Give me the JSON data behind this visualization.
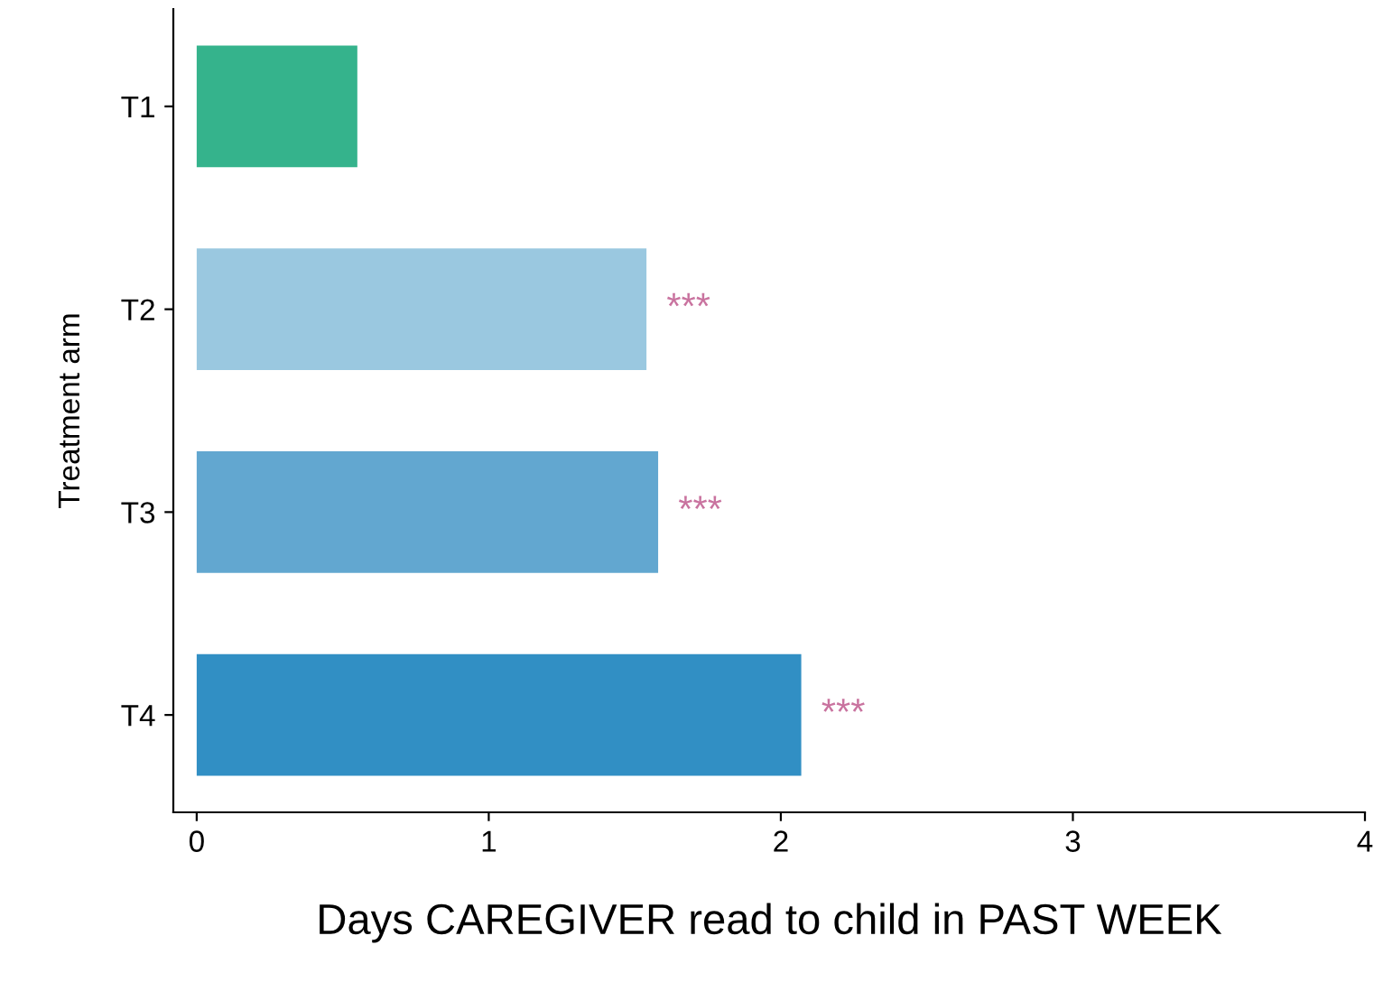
{
  "chart_data": {
    "type": "bar",
    "orientation": "horizontal",
    "xlabel": "Days CAREGIVER read to child in PAST WEEK",
    "ylabel": "Treatment arm",
    "categories": [
      "T1",
      "T2",
      "T3",
      "T4"
    ],
    "values": [
      0.55,
      1.54,
      1.58,
      2.07
    ],
    "colors": [
      "#35b38c",
      "#9ac8e0",
      "#62a7d0",
      "#318fc4"
    ],
    "xlim": [
      -0.08,
      4
    ],
    "xticks": [
      0,
      1,
      2,
      3,
      4
    ],
    "grid": false,
    "legend": false,
    "annotations": [
      {
        "text": "***",
        "x": 1.54,
        "y": "T2"
      },
      {
        "text": "***",
        "x": 1.58,
        "y": "T3"
      },
      {
        "text": "***",
        "x": 2.07,
        "y": "T4"
      }
    ]
  }
}
